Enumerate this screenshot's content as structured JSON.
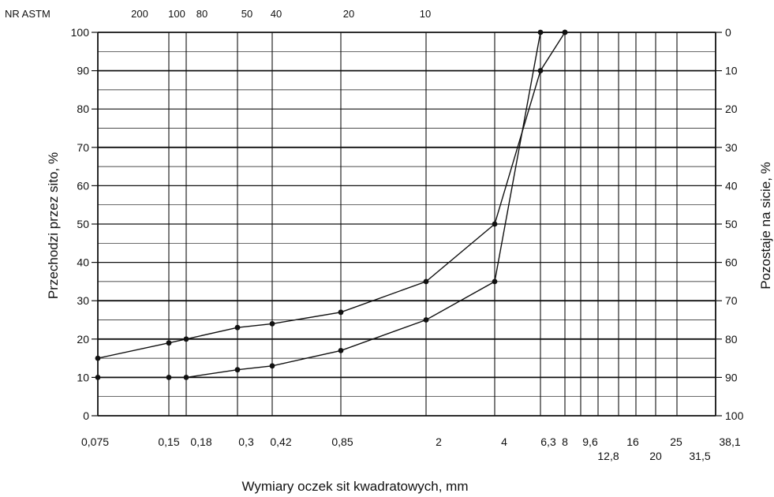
{
  "chart_data": {
    "type": "line",
    "title": "",
    "xlabel": "Wymiary oczek sit kwadratowych, mm",
    "ylabel": "Przechodzi przez sito, %",
    "y2label": "Pozostaje na sicie, %",
    "ylim": [
      0,
      100
    ],
    "y_ticks": [
      "0",
      "10",
      "20",
      "30",
      "40",
      "50",
      "60",
      "70",
      "80",
      "90",
      "100"
    ],
    "y2_ticks": [
      "100",
      "90",
      "80",
      "70",
      "60",
      "50",
      "40",
      "30",
      "20",
      "10",
      "0"
    ],
    "x_ticks_row1": [
      "0,075",
      "0,15",
      "0,18",
      "0,3",
      "0,42",
      "0,85",
      "2",
      "4",
      "6,3",
      "8",
      "9,6",
      "16",
      "25",
      "38,1"
    ],
    "x_ticks_row2": [
      "12,8",
      "20",
      "31,5"
    ],
    "astm_title": "NR ASTM",
    "astm_labels": [
      "200",
      "100",
      "80",
      "50",
      "40",
      "20",
      "10"
    ],
    "sieves": [
      "0,075",
      "0,15",
      "0,18",
      "0,3",
      "0,42",
      "0,85",
      "2",
      "4",
      "6,3",
      "8"
    ],
    "grid_lines": [
      "0,075",
      "0,15",
      "0,18",
      "0,3",
      "0,42",
      "0,85",
      "2",
      "4",
      "6,3",
      "8",
      "9,6",
      "12,8",
      "16",
      "20",
      "25",
      "31,5",
      "38,1"
    ],
    "series": [
      {
        "name": "",
        "values": [
          15,
          19,
          20,
          23,
          24,
          27,
          35,
          50,
          90,
          100
        ]
      },
      {
        "name": "",
        "values": [
          10,
          10,
          10,
          12,
          13,
          17,
          25,
          35,
          100,
          100
        ]
      }
    ],
    "grid": true,
    "legend": "none"
  }
}
